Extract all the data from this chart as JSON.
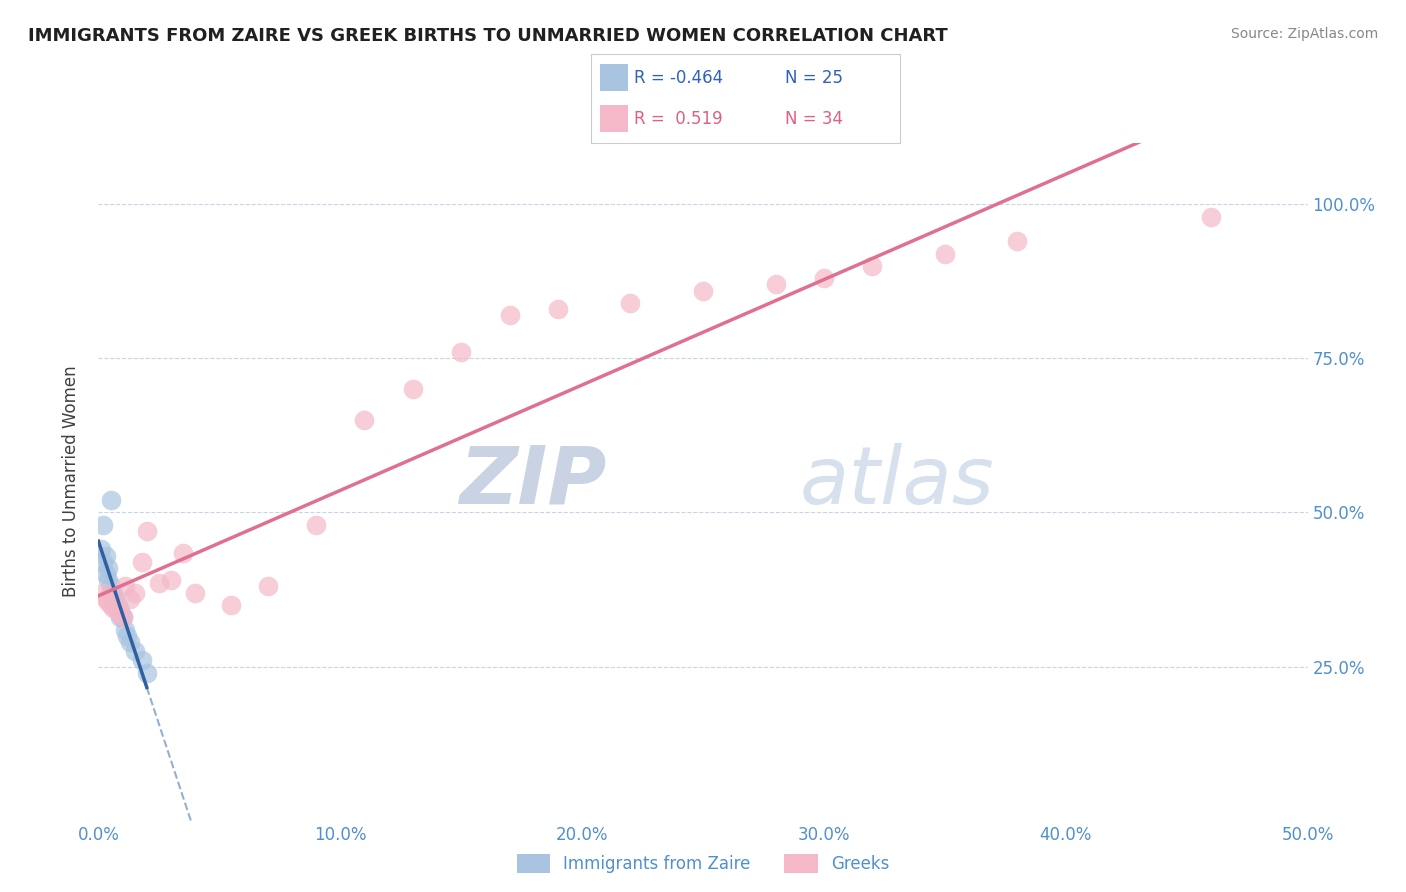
{
  "title": "IMMIGRANTS FROM ZAIRE VS GREEK BIRTHS TO UNMARRIED WOMEN CORRELATION CHART",
  "source": "Source: ZipAtlas.com",
  "ylabel": "Births to Unmarried Women",
  "xlim": [
    0.0,
    0.5
  ],
  "ylim": [
    0.0,
    1.1
  ],
  "xtick_labels": [
    "0.0%",
    "10.0%",
    "20.0%",
    "30.0%",
    "40.0%",
    "50.0%"
  ],
  "xtick_values": [
    0.0,
    0.1,
    0.2,
    0.3,
    0.4,
    0.5
  ],
  "ytick_labels": [
    "25.0%",
    "50.0%",
    "75.0%",
    "100.0%"
  ],
  "ytick_values": [
    0.25,
    0.5,
    0.75,
    1.0
  ],
  "legend_blue_r": "-0.464",
  "legend_blue_n": "25",
  "legend_pink_r": "0.519",
  "legend_pink_n": "34",
  "blue_color": "#a8c4e0",
  "pink_color": "#f4b8c8",
  "blue_line_color": "#3060a0",
  "pink_line_color": "#e07090",
  "title_color": "#202020",
  "axis_label_color": "#404040",
  "tick_color": "#5090d0",
  "grid_color": "#c8d4e8",
  "watermark_color": "#c8d8f0",
  "blue_scatter_x": [
    0.001,
    0.002,
    0.002,
    0.003,
    0.003,
    0.004,
    0.004,
    0.005,
    0.005,
    0.006,
    0.006,
    0.007,
    0.007,
    0.008,
    0.008,
    0.009,
    0.009,
    0.01,
    0.011,
    0.012,
    0.013,
    0.015,
    0.018,
    0.02,
    0.005
  ],
  "blue_scatter_y": [
    0.44,
    0.42,
    0.48,
    0.4,
    0.43,
    0.39,
    0.41,
    0.37,
    0.38,
    0.36,
    0.37,
    0.35,
    0.36,
    0.34,
    0.35,
    0.33,
    0.34,
    0.33,
    0.31,
    0.3,
    0.29,
    0.275,
    0.26,
    0.24,
    0.52
  ],
  "pink_scatter_x": [
    0.002,
    0.003,
    0.004,
    0.005,
    0.006,
    0.007,
    0.008,
    0.009,
    0.01,
    0.011,
    0.013,
    0.015,
    0.018,
    0.02,
    0.025,
    0.03,
    0.035,
    0.04,
    0.055,
    0.07,
    0.09,
    0.11,
    0.13,
    0.15,
    0.17,
    0.19,
    0.22,
    0.25,
    0.28,
    0.3,
    0.32,
    0.35,
    0.38,
    0.46
  ],
  "pink_scatter_y": [
    0.37,
    0.36,
    0.355,
    0.35,
    0.345,
    0.355,
    0.34,
    0.335,
    0.33,
    0.38,
    0.36,
    0.37,
    0.42,
    0.47,
    0.385,
    0.39,
    0.435,
    0.37,
    0.35,
    0.38,
    0.48,
    0.65,
    0.7,
    0.76,
    0.82,
    0.83,
    0.84,
    0.86,
    0.87,
    0.88,
    0.9,
    0.92,
    0.94,
    0.98
  ],
  "marker_size": 200
}
